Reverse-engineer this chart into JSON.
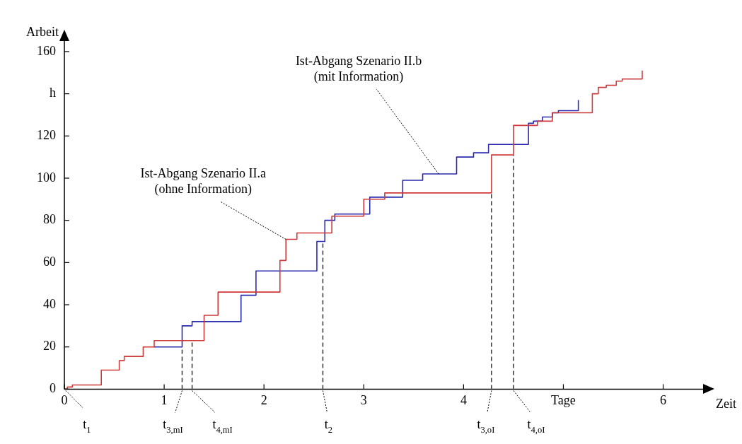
{
  "chart_data": {
    "type": "step",
    "xlabel": "Zeit",
    "ylabel": "Arbeit",
    "xlim": [
      0,
      6.4
    ],
    "ylim": [
      0,
      165
    ],
    "xticks": [
      0,
      1,
      2,
      3,
      4,
      {
        "value": 5,
        "label": "Tage"
      },
      6
    ],
    "yticks": [
      0,
      20,
      40,
      60,
      80,
      100,
      120,
      {
        "value": 140,
        "label": "h"
      },
      160
    ],
    "grid": false,
    "legend": false,
    "marker": "none",
    "line_style": "solid",
    "series": [
      {
        "color": "#d03a3a",
        "x": [
          0,
          0.03,
          0.08,
          0.37,
          0.55,
          0.6,
          0.79,
          0.9,
          1.4,
          1.54,
          2.16,
          2.22,
          2.33,
          2.68,
          3.0,
          3.21,
          4.28,
          4.5,
          4.74,
          4.89,
          5.29,
          5.35,
          5.43,
          5.53,
          5.59,
          5.79,
          5.79
        ],
        "values": [
          0,
          1,
          2,
          9,
          13.5,
          15.5,
          20,
          23,
          35,
          46,
          61,
          71,
          74,
          82,
          90,
          93,
          111,
          125,
          127,
          131,
          140,
          143,
          144,
          146,
          147,
          147,
          151
        ]
      },
      {
        "color": "#2b2bb0",
        "x": [
          0.9,
          1.18,
          1.28,
          1.77,
          1.92,
          2.53,
          2.61,
          2.71,
          3.06,
          3.39,
          3.59,
          3.93,
          4.1,
          4.25,
          4.65,
          4.7,
          4.79,
          4.89,
          4.95,
          5.15,
          5.15
        ],
        "values": [
          20,
          30,
          32,
          44.5,
          56,
          70,
          80,
          83,
          91,
          99,
          102,
          110,
          112,
          116,
          126,
          127,
          129,
          131,
          132,
          132,
          137
        ]
      }
    ],
    "ref_lines": [
      {
        "axis": "x",
        "value": 1.18,
        "label": "t$_{3,mI}$"
      },
      {
        "axis": "x",
        "value": 1.28,
        "label": "t$_{4,mI}$"
      },
      {
        "axis": "x",
        "value": 2.59,
        "label": "t$_{2}$"
      },
      {
        "axis": "x",
        "value": 4.28,
        "label": "t$_{3,oI}$"
      },
      {
        "axis": "x",
        "value": 4.5,
        "label": "t$_{4,oI}$"
      }
    ],
    "annotations": [
      {
        "text": "Ist-Abgang Szenario II.a\n(ohne Information)",
        "x": 2.22,
        "y": 71
      },
      {
        "text": "Ist-Abgang Szenario II.b\n(mit Information)",
        "x": 3.75,
        "y": 102
      },
      {
        "text": "t$_{1}$",
        "x": 0,
        "y": 0
      }
    ]
  }
}
